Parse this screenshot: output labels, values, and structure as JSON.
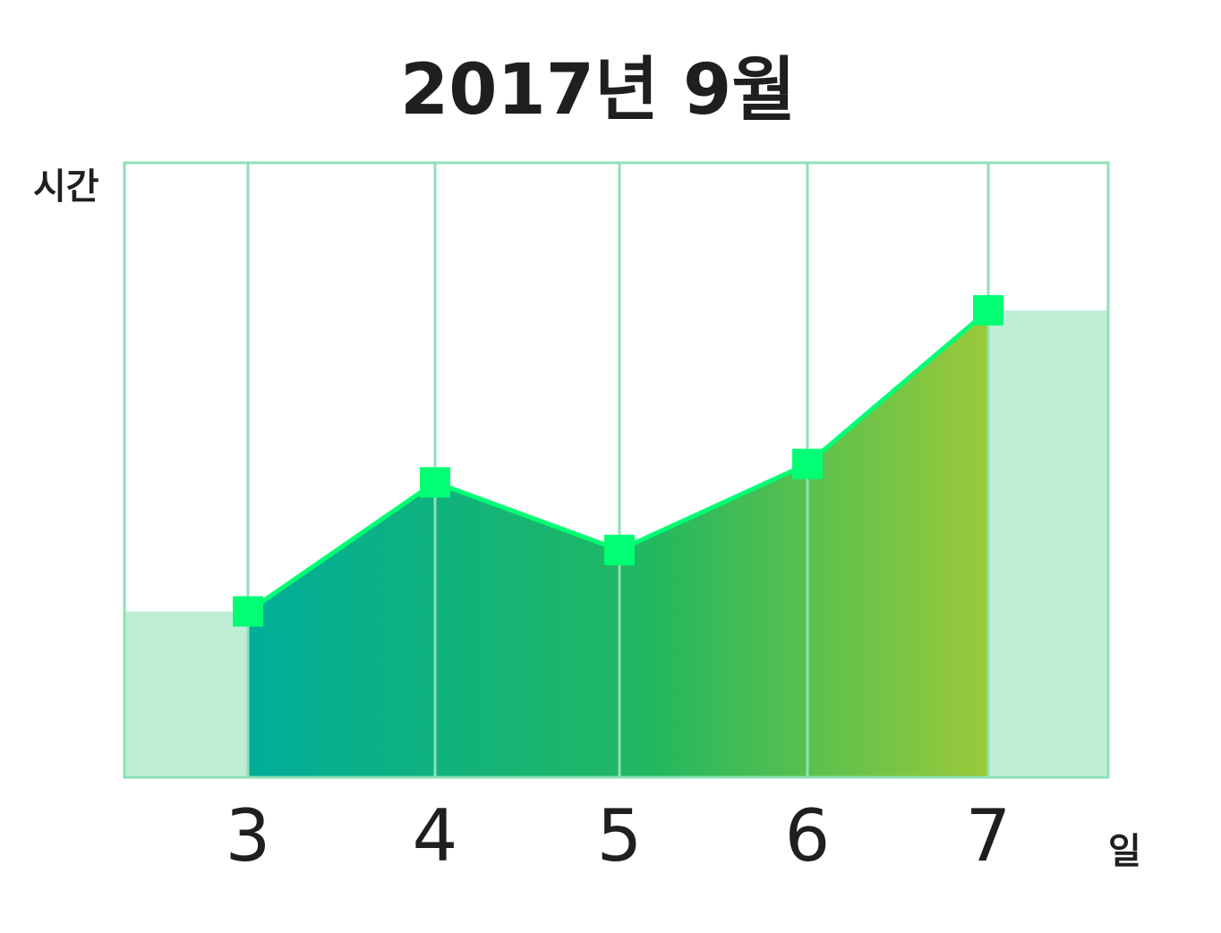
{
  "chart_data": {
    "type": "area",
    "title": "2017년 9월",
    "xlabel": "일",
    "ylabel": "시간",
    "categories": [
      "3",
      "4",
      "5",
      "6",
      "7"
    ],
    "series": [
      {
        "values": [
          27,
          48,
          37,
          51,
          76
        ]
      }
    ],
    "ylim": [
      0,
      100
    ],
    "grid": true,
    "edge_values": [
      27,
      76
    ],
    "colors": {
      "gradient_start": "#00ad99",
      "gradient_mid": "#22b85f",
      "gradient_end": "#9cc93a",
      "line": "#00ff73",
      "marker": "#00ff73",
      "grid": "#8ee0b6",
      "edge_fill": "#bfeed6",
      "text": "#1f1f1f"
    }
  }
}
